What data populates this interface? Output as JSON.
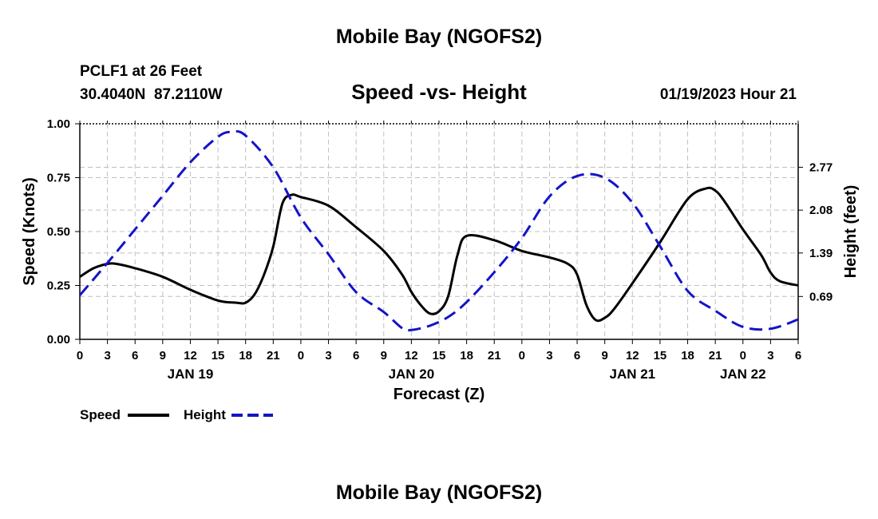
{
  "header": {
    "title": "Mobile Bay (NGOFS2)",
    "station_line": "PCLF1 at 26 Feet",
    "coords_line": "30.4040N  87.2110W",
    "subtitle": "Speed -vs- Height",
    "timestamp": "01/19/2023 Hour 21"
  },
  "footer": {
    "title": "Mobile Bay (NGOFS2)"
  },
  "legend": {
    "speed_label": "Speed",
    "height_label": "Height"
  },
  "colors": {
    "speed": "#000000",
    "height": "#1414c8",
    "grid": "#c0c0c0"
  },
  "chart_data": {
    "type": "line",
    "xlabel": "Forecast (Z)",
    "ylabel_left": "Speed (Knots)",
    "ylabel_right": "Height (feet)",
    "xlim": [
      0,
      78
    ],
    "ylim_left": [
      0,
      1.0
    ],
    "ylim_right": [
      0,
      3.47
    ],
    "grid": true,
    "legend_position": "bottom-left",
    "x_tick_values": [
      0,
      3,
      6,
      9,
      12,
      15,
      18,
      21,
      24,
      27,
      30,
      33,
      36,
      39,
      42,
      45,
      48,
      51,
      54,
      57,
      60,
      63,
      66,
      69,
      72,
      75,
      78
    ],
    "x_tick_labels": [
      "0",
      "3",
      "6",
      "9",
      "12",
      "15",
      "18",
      "21",
      "0",
      "3",
      "6",
      "9",
      "12",
      "15",
      "18",
      "21",
      "0",
      "3",
      "6",
      "9",
      "12",
      "15",
      "18",
      "21",
      "0",
      "3",
      "6"
    ],
    "date_labels": [
      {
        "text": "JAN 19",
        "x": 12
      },
      {
        "text": "JAN 20",
        "x": 36
      },
      {
        "text": "JAN 21",
        "x": 60
      },
      {
        "text": "JAN 22",
        "x": 72
      }
    ],
    "left_ticks": [
      {
        "value": 0.0,
        "label": "0.00"
      },
      {
        "value": 0.25,
        "label": "0.25"
      },
      {
        "value": 0.5,
        "label": "0.50"
      },
      {
        "value": 0.75,
        "label": "0.75"
      },
      {
        "value": 1.0,
        "label": "1.00"
      }
    ],
    "right_ticks": [
      {
        "value": 0.69,
        "label": "0.69"
      },
      {
        "value": 1.39,
        "label": "1.39"
      },
      {
        "value": 2.08,
        "label": "2.08"
      },
      {
        "value": 2.77,
        "label": "2.77"
      }
    ],
    "series": [
      {
        "name": "Speed",
        "axis": "left",
        "style": "solid",
        "x": [
          0,
          1.5,
          3,
          4,
          6,
          9,
          12,
          15,
          17,
          18,
          19,
          20,
          21,
          22,
          23,
          24,
          27,
          30,
          33,
          35,
          36,
          37,
          38,
          39,
          40,
          41,
          42,
          45,
          48,
          51,
          53,
          54,
          55,
          56,
          57,
          58,
          60,
          63,
          66,
          68,
          69,
          70,
          72,
          74,
          75,
          76,
          78
        ],
        "y": [
          0.29,
          0.33,
          0.35,
          0.35,
          0.33,
          0.29,
          0.23,
          0.18,
          0.17,
          0.17,
          0.21,
          0.3,
          0.43,
          0.63,
          0.67,
          0.66,
          0.62,
          0.52,
          0.41,
          0.3,
          0.22,
          0.16,
          0.12,
          0.13,
          0.2,
          0.39,
          0.48,
          0.46,
          0.41,
          0.38,
          0.35,
          0.3,
          0.16,
          0.09,
          0.1,
          0.14,
          0.26,
          0.45,
          0.65,
          0.7,
          0.69,
          0.64,
          0.51,
          0.39,
          0.31,
          0.27,
          0.25
        ]
      },
      {
        "name": "Height",
        "axis": "right",
        "style": "dashed",
        "x": [
          0,
          3,
          6,
          9,
          12,
          15,
          16.5,
          18,
          21,
          24,
          27,
          30,
          33,
          35,
          36,
          38,
          40,
          42,
          45,
          48,
          51,
          54,
          57,
          60,
          63,
          66,
          69,
          72,
          75,
          78
        ],
        "y": [
          0.71,
          1.23,
          1.77,
          2.31,
          2.85,
          3.26,
          3.34,
          3.28,
          2.77,
          1.96,
          1.37,
          0.76,
          0.44,
          0.18,
          0.15,
          0.22,
          0.36,
          0.6,
          1.08,
          1.63,
          2.3,
          2.63,
          2.6,
          2.2,
          1.5,
          0.78,
          0.46,
          0.2,
          0.17,
          0.32
        ]
      }
    ]
  }
}
